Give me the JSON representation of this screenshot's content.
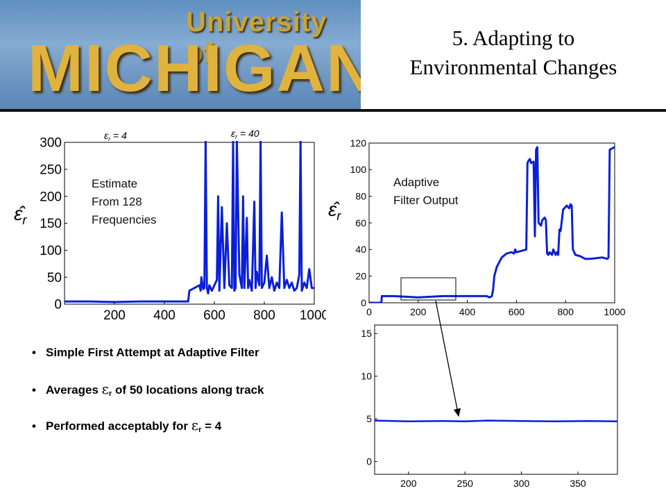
{
  "banner": {
    "line1": "University of",
    "line2": "MICHIGAN"
  },
  "title": {
    "line1": "5. Adapting to",
    "line2": "Environmental Changes"
  },
  "bullets": [
    {
      "text": "Simple First Attempt at Adaptive Filter"
    },
    {
      "before": "Averages",
      "symbol": "ε",
      "sub": "r",
      "after": "of 50 locations along track"
    },
    {
      "before": "Performed acceptably for",
      "symbol": "ε",
      "sub": "r",
      "after": "= 4"
    }
  ],
  "chart_data": [
    {
      "type": "line",
      "annotation": "Estimate\nFrom 128\nFrequencies",
      "ylabel": "ε̂ r",
      "top_labels": [
        "εr = 4",
        "εr = 40"
      ],
      "xlim": [
        0,
        1000
      ],
      "ylim": [
        0,
        300
      ],
      "xticks": [
        200,
        400,
        600,
        800,
        1000
      ],
      "yticks": [
        0,
        50,
        100,
        150,
        200,
        250,
        300
      ],
      "x": [
        0,
        100,
        200,
        300,
        400,
        495,
        500,
        520,
        540,
        545,
        548,
        555,
        560,
        565,
        570,
        575,
        580,
        590,
        600,
        610,
        615,
        620,
        630,
        640,
        650,
        660,
        670,
        675,
        680,
        685,
        690,
        700,
        710,
        715,
        720,
        730,
        735,
        740,
        750,
        760,
        765,
        770,
        780,
        785,
        790,
        800,
        810,
        820,
        830,
        840,
        850,
        860,
        870,
        880,
        890,
        900,
        910,
        920,
        930,
        940,
        945,
        950,
        960,
        970,
        980,
        990,
        1000
      ],
      "y": [
        5,
        5,
        4,
        5,
        5,
        5,
        25,
        30,
        35,
        25,
        50,
        28,
        30,
        305,
        30,
        20,
        35,
        25,
        35,
        45,
        200,
        25,
        180,
        30,
        150,
        35,
        30,
        305,
        25,
        30,
        305,
        55,
        30,
        200,
        30,
        160,
        30,
        45,
        25,
        190,
        30,
        60,
        35,
        305,
        30,
        40,
        90,
        30,
        50,
        25,
        40,
        30,
        170,
        30,
        45,
        30,
        40,
        25,
        30,
        55,
        305,
        25,
        40,
        30,
        65,
        30,
        30
      ]
    },
    {
      "type": "line",
      "annotation": "Adaptive\nFilter Output",
      "ylabel": "ε̂ r",
      "xlim": [
        0,
        1000
      ],
      "ylim": [
        0,
        120
      ],
      "xticks": [
        0,
        200,
        400,
        600,
        800,
        1000
      ],
      "yticks": [
        0,
        20,
        40,
        60,
        80,
        100,
        120
      ],
      "x": [
        0,
        50,
        52,
        100,
        200,
        300,
        400,
        480,
        490,
        500,
        505,
        510,
        520,
        540,
        560,
        580,
        590,
        595,
        600,
        620,
        640,
        645,
        650,
        655,
        660,
        670,
        675,
        680,
        685,
        690,
        700,
        705,
        710,
        715,
        720,
        725,
        730,
        735,
        740,
        745,
        750,
        755,
        760,
        765,
        770,
        775,
        780,
        790,
        800,
        805,
        810,
        815,
        820,
        825,
        830,
        840,
        860,
        880,
        900,
        950,
        970,
        975,
        980,
        1000
      ],
      "y": [
        0,
        0,
        5,
        5,
        4,
        5,
        5,
        5,
        4,
        5,
        10,
        20,
        27,
        34,
        37,
        38,
        37,
        40,
        38,
        39,
        40,
        105,
        107,
        108,
        105,
        106,
        50,
        115,
        117,
        60,
        58,
        62,
        63,
        64,
        62,
        37,
        36,
        38,
        37,
        36,
        40,
        38,
        36,
        38,
        36,
        55,
        54,
        70,
        72,
        73,
        72,
        71,
        74,
        73,
        40,
        36,
        35,
        33,
        33,
        34,
        33,
        34,
        115,
        117
      ]
    },
    {
      "type": "line",
      "xlim": [
        170,
        385
      ],
      "ylim": [
        -1.5,
        16
      ],
      "xticks": [
        200,
        250,
        300,
        350
      ],
      "yticks": [
        0,
        5,
        10,
        15
      ],
      "x": [
        170,
        200,
        230,
        250,
        270,
        300,
        330,
        360,
        385
      ],
      "y": [
        4.8,
        4.7,
        4.75,
        4.7,
        4.8,
        4.75,
        4.7,
        4.75,
        4.7
      ]
    }
  ]
}
